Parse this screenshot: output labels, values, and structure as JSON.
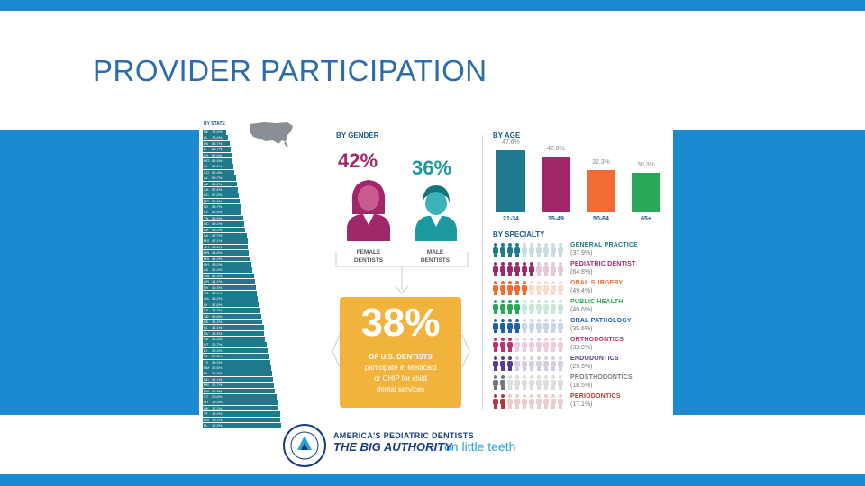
{
  "slide": {
    "title": "PROVIDER PARTICIPATION"
  },
  "by_state": {
    "title": "BY STATE",
    "rows": [
      {
        "abbr": "NE",
        "val": "74.2%",
        "frac": 0.09
      },
      {
        "abbr": "IA",
        "val": "73.4%",
        "frac": 0.11
      },
      {
        "abbr": "PA",
        "val": "66.7%",
        "frac": 0.13
      },
      {
        "abbr": "IL",
        "val": "66.7%",
        "frac": 0.14
      },
      {
        "abbr": "WI",
        "val": "67.0%",
        "frac": 0.15
      },
      {
        "abbr": "MO",
        "val": "65.4%",
        "frac": 0.17
      },
      {
        "abbr": "IN",
        "val": "61.2%",
        "frac": 0.18
      },
      {
        "abbr": "CO",
        "val": "60.4%",
        "frac": 0.19
      },
      {
        "abbr": "AL",
        "val": "59.7%",
        "frac": 0.21
      },
      {
        "abbr": "AZ",
        "val": "58.2%",
        "frac": 0.22
      },
      {
        "abbr": "CA",
        "val": "57.6%",
        "frac": 0.23
      },
      {
        "abbr": "DC",
        "val": "57.5%",
        "frac": 0.24
      },
      {
        "abbr": "MD",
        "val": "56.6%",
        "frac": 0.26
      },
      {
        "abbr": "NJ",
        "val": "53.7%",
        "frac": 0.27
      },
      {
        "abbr": "KY",
        "val": "52.5%",
        "frac": 0.28
      },
      {
        "abbr": "TN",
        "val": "50.5%",
        "frac": 0.3
      },
      {
        "abbr": "NC",
        "val": "49.1%",
        "frac": 0.31
      },
      {
        "abbr": "AR",
        "val": "48.2%",
        "frac": 0.32
      },
      {
        "abbr": "LA",
        "val": "47.7%",
        "frac": 0.34
      },
      {
        "abbr": "MS",
        "val": "47.1%",
        "frac": 0.35
      },
      {
        "abbr": "OH",
        "val": "45.0%",
        "frac": 0.36
      },
      {
        "abbr": "MN",
        "val": "44.8%",
        "frac": 0.37
      },
      {
        "abbr": "MA",
        "val": "44.2%",
        "frac": 0.39
      },
      {
        "abbr": "NH",
        "val": "43.0%",
        "frac": 0.4
      },
      {
        "abbr": "AK",
        "val": "42.4%",
        "frac": 0.41
      },
      {
        "abbr": "WA",
        "val": "41.3%",
        "frac": 0.43
      },
      {
        "abbr": "OR",
        "val": "41.1%",
        "frac": 0.44
      },
      {
        "abbr": "NY",
        "val": "40.3%",
        "frac": 0.45
      },
      {
        "abbr": "SC",
        "val": "39.4%",
        "frac": 0.47
      },
      {
        "abbr": "GA",
        "val": "38.2%",
        "frac": 0.48
      },
      {
        "abbr": "RI",
        "val": "37.6%",
        "frac": 0.49
      },
      {
        "abbr": "KS",
        "val": "36.7%",
        "frac": 0.51
      },
      {
        "abbr": "SD",
        "val": "35.6%",
        "frac": 0.52
      },
      {
        "abbr": "DE",
        "val": "35.3%",
        "frac": 0.53
      },
      {
        "abbr": "FL",
        "val": "34.1%",
        "frac": 0.55
      },
      {
        "abbr": "NV",
        "val": "33.5%",
        "frac": 0.56
      },
      {
        "abbr": "VA",
        "val": "32.4%",
        "frac": 0.57
      },
      {
        "abbr": "UT",
        "val": "30.7%",
        "frac": 0.59
      },
      {
        "abbr": "ID",
        "val": "30.4%",
        "frac": 0.6
      },
      {
        "abbr": "MI",
        "val": "29.8%",
        "frac": 0.61
      },
      {
        "abbr": "TX",
        "val": "28.3%",
        "frac": 0.63
      },
      {
        "abbr": "NM",
        "val": "26.6%",
        "frac": 0.64
      },
      {
        "abbr": "HI",
        "val": "25.9%",
        "frac": 0.65
      },
      {
        "abbr": "ND",
        "val": "24.1%",
        "frac": 0.67
      },
      {
        "abbr": "ME",
        "val": "22.7%",
        "frac": 0.68
      },
      {
        "abbr": "WY",
        "val": "21.8%",
        "frac": 0.69
      },
      {
        "abbr": "CT",
        "val": "20.6%",
        "frac": 0.71
      },
      {
        "abbr": "MT",
        "val": "19.3%",
        "frac": 0.72
      },
      {
        "abbr": "OK",
        "val": "17.2%",
        "frac": 0.73
      },
      {
        "abbr": "VT",
        "val": "15.9%",
        "frac": 0.75
      },
      {
        "abbr": "WV",
        "val": "13.1%",
        "frac": 0.76
      },
      {
        "abbr": "IA",
        "val": "12.2%",
        "frac": 0.77
      }
    ],
    "bar_color": "#1e7a8c"
  },
  "by_gender": {
    "title": "BY GENDER",
    "female_pct": "42%",
    "male_pct": "36%",
    "female_label_1": "FEMALE",
    "female_label_2": "DENTISTS",
    "male_label_1": "MALE",
    "male_label_2": "DENTISTS",
    "female_color": "#a0286a",
    "male_color": "#1c9aa0"
  },
  "headline": {
    "value": "38%",
    "line1": "OF U.S. DENTISTS",
    "line2": "participate in Medicaid",
    "line3": "or CHIP for child",
    "line4": "dental services",
    "color": "#f2b33d"
  },
  "chart_data": {
    "type": "bar",
    "title": "BY AGE",
    "categories": [
      "21-34",
      "35-49",
      "50-64",
      "65+"
    ],
    "values": [
      47.6,
      42.8,
      32.3,
      30.3
    ],
    "value_labels": [
      "47.6%",
      "42.8%",
      "32.3%",
      "30.3%"
    ],
    "colors": [
      "#1e7a8c",
      "#a0286a",
      "#f26b35",
      "#2aa85a"
    ],
    "ylim": [
      0,
      50
    ]
  },
  "by_specialty": {
    "title": "BY SPECIALTY",
    "items": [
      {
        "name": "GENERAL PRACTICE",
        "pct": "(37.9%)",
        "value": 37.9,
        "color": "#1e7a8c"
      },
      {
        "name": "PEDIATRIC DENTIST",
        "pct": "(64.8%)",
        "value": 64.8,
        "color": "#a0286a"
      },
      {
        "name": "ORAL SURGERY",
        "pct": "(49.4%)",
        "value": 49.4,
        "color": "#f26b35"
      },
      {
        "name": "PUBLIC HEALTH",
        "pct": "(40.6%)",
        "value": 40.6,
        "color": "#2aa85a"
      },
      {
        "name": "ORAL PATHOLOGY",
        "pct": "(35.6%)",
        "value": 35.6,
        "color": "#1f5fa8"
      },
      {
        "name": "ORTHODONTICS",
        "pct": "(33.9%)",
        "value": 33.9,
        "color": "#c4306e"
      },
      {
        "name": "ENDODONTICS",
        "pct": "(25.5%)",
        "value": 25.5,
        "color": "#5a3c8c"
      },
      {
        "name": "PROSTHODONTICS",
        "pct": "(18.5%)",
        "value": 18.5,
        "color": "#6e7a82"
      },
      {
        "name": "PERIODONTICS",
        "pct": "(17.1%)",
        "value": 17.1,
        "color": "#b03a3a"
      }
    ]
  },
  "logo": {
    "line1": "AMERICA'S PEDIATRIC DENTISTS",
    "line2": "THE BIG AUTHORITY",
    "line3": "on little teeth",
    "seal_text": "AMERICAN ACADEMY OF PEDIATRIC DENTISTRY"
  }
}
